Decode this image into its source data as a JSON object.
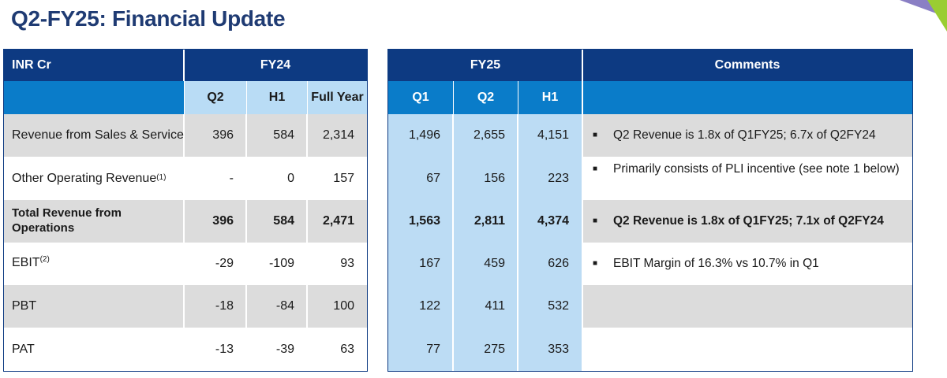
{
  "title": "Q2-FY25: Financial Update",
  "colors": {
    "dark_blue": "#0d3a82",
    "mid_blue": "#0a7cc9",
    "light_blue": "#b9dcf5",
    "row_grey": "#dcdcdc"
  },
  "header": {
    "unit": "INR Cr",
    "fy24": "FY24",
    "fy25": "FY25",
    "comments": "Comments",
    "fy24_cols": [
      "Q2",
      "H1",
      "Full Year"
    ],
    "fy25_cols": [
      "Q1",
      "Q2",
      "H1"
    ]
  },
  "rows": [
    {
      "label": "Revenue from Sales & Service",
      "sup": "",
      "fy24": [
        "396",
        "584",
        "2,314"
      ],
      "fy25": [
        "1,496",
        "2,655",
        "4,151"
      ],
      "comment": "Q2 Revenue is 1.8x of Q1FY25; 6.7x of Q2FY24"
    },
    {
      "label": "Other Operating Revenue",
      "sup": "(1)",
      "fy24": [
        "-",
        "0",
        "157"
      ],
      "fy25": [
        "67",
        "156",
        "223"
      ],
      "comment": "Primarily consists of PLI incentive (see note 1 below)"
    },
    {
      "label": "Total Revenue from Operations",
      "sup": "",
      "fy24": [
        "396",
        "584",
        "2,471"
      ],
      "fy25": [
        "1,563",
        "2,811",
        "4,374"
      ],
      "comment": "Q2 Revenue is 1.8x of Q1FY25; 7.1x of Q2FY24"
    },
    {
      "label": "EBIT",
      "sup": "(2)",
      "fy24": [
        "-29",
        "-109",
        "93"
      ],
      "fy25": [
        "167",
        "459",
        "626"
      ],
      "comment": "EBIT Margin of 16.3% vs 10.7% in Q1"
    },
    {
      "label": "PBT",
      "sup": "",
      "fy24": [
        "-18",
        "-84",
        "100"
      ],
      "fy25": [
        "122",
        "411",
        "532"
      ],
      "comment": ""
    },
    {
      "label": "PAT",
      "sup": "",
      "fy24": [
        "-13",
        "-39",
        "63"
      ],
      "fy25": [
        "77",
        "275",
        "353"
      ],
      "comment": ""
    }
  ]
}
